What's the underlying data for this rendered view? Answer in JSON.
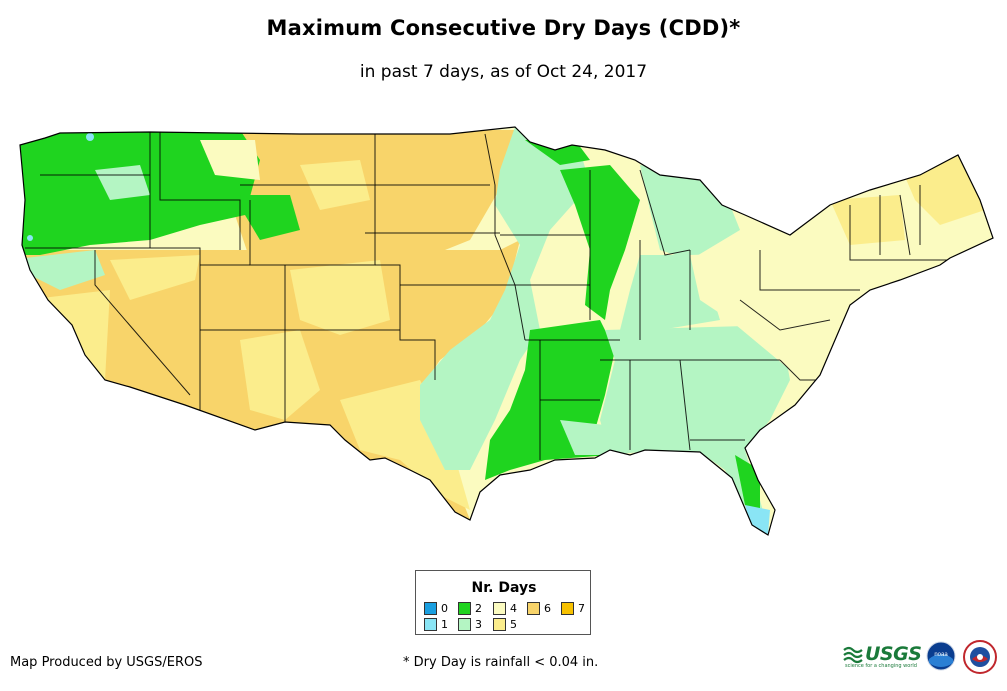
{
  "title": "Maximum Consecutive Dry Days (CDD)*",
  "subtitle": "in past 7 days, as of Oct 24, 2017",
  "legend": {
    "title": "Nr. Days",
    "items": [
      {
        "label": "0",
        "color": "#1a9fe0"
      },
      {
        "label": "1",
        "color": "#8ae5f5"
      },
      {
        "label": "2",
        "color": "#1fd41f"
      },
      {
        "label": "3",
        "color": "#b4f5c3"
      },
      {
        "label": "4",
        "color": "#fbfbc0"
      },
      {
        "label": "5",
        "color": "#fbed8c"
      },
      {
        "label": "6",
        "color": "#f8d46a"
      },
      {
        "label": "7",
        "color": "#f7c100"
      }
    ]
  },
  "credit": "Map Produced by USGS/EROS",
  "footnote": "* Dry Day is rainfall < 0.04 in.",
  "logos": {
    "usgs": "USGS",
    "usgs_tagline": "science for a changing world",
    "noaa": "noaa"
  },
  "map_regions": [
    {
      "name": "pacific-northwest",
      "days": 2
    },
    {
      "name": "northern-rockies",
      "days": 2
    },
    {
      "name": "california-coast",
      "days": 3
    },
    {
      "name": "california-nevada",
      "days": 6
    },
    {
      "name": "desert-southwest",
      "days": 6
    },
    {
      "name": "northern-plains",
      "days": 6
    },
    {
      "name": "central-plains",
      "days": 6
    },
    {
      "name": "west-texas",
      "days": 5
    },
    {
      "name": "south-central",
      "days": 3
    },
    {
      "name": "upper-midwest",
      "days": 3
    },
    {
      "name": "lower-mississippi",
      "days": 2
    },
    {
      "name": "southeast",
      "days": 3
    },
    {
      "name": "ohio-valley",
      "days": 4
    },
    {
      "name": "northeast",
      "days": 4
    },
    {
      "name": "new-england-maine",
      "days": 5
    }
  ]
}
